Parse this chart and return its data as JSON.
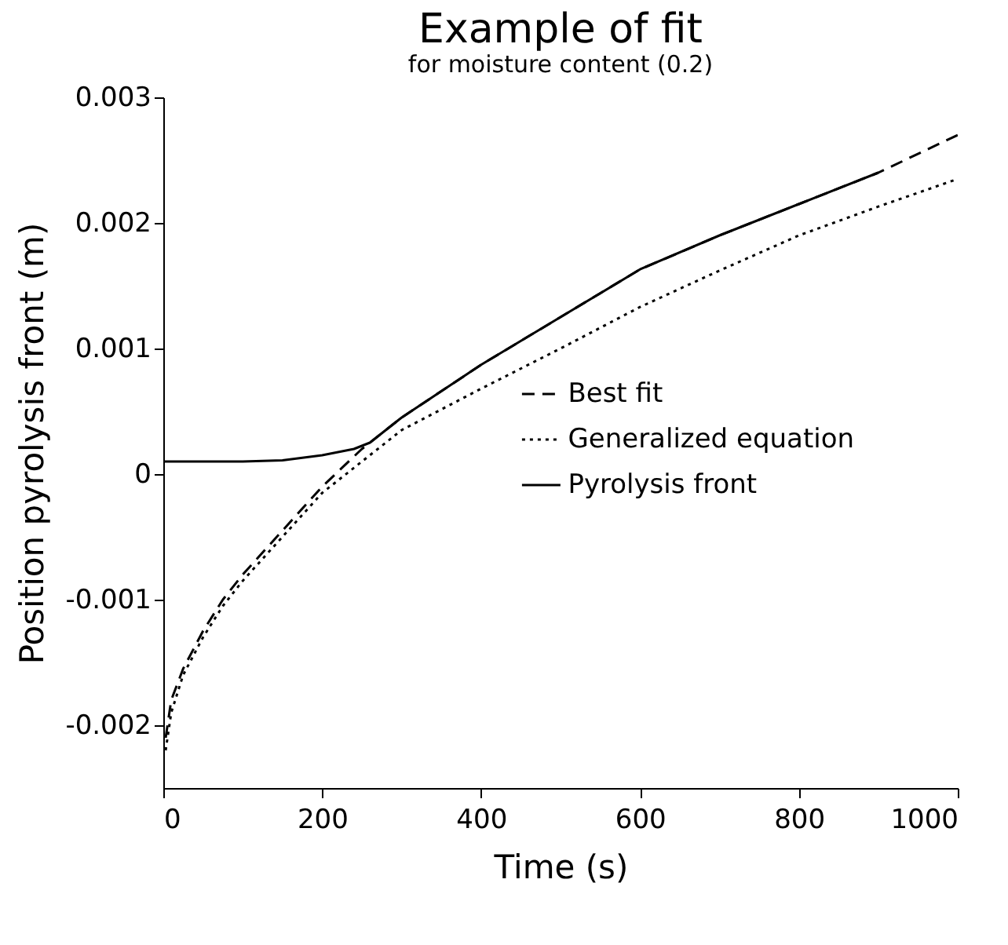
{
  "chart_data": {
    "type": "line",
    "title": "Example of fit",
    "subtitle": "for moisture content (0.2)",
    "xlabel": "Time (s)",
    "ylabel": "Position pyrolysis front (m)",
    "xlim": [
      0,
      1000
    ],
    "xticks": [
      0,
      200,
      400,
      600,
      800,
      1000
    ],
    "ylim": [
      -0.0025,
      0.003
    ],
    "yticks": [
      -0.002,
      -0.001,
      0,
      0.001,
      0.002,
      0.003
    ],
    "grid": false,
    "legend": "right",
    "marker": "none",
    "series": [
      {
        "name": "Best fit",
        "color": "#000000",
        "line_style": "dashed",
        "x": [
          3,
          10,
          25,
          50,
          75,
          100,
          150,
          200,
          250,
          300,
          400,
          500,
          600,
          700,
          800,
          900,
          1000
        ],
        "values": [
          -0.0021,
          -0.0018,
          -0.00155,
          -0.00125,
          -0.001,
          -0.0008,
          -0.00045,
          -0.0001,
          0.0002,
          0.00045,
          0.00087,
          0.00125,
          0.00163,
          0.0019,
          0.00215,
          0.0024,
          0.0027
        ]
      },
      {
        "name": "Generalized equation",
        "color": "#000000",
        "line_style": "dotted",
        "x": [
          3,
          10,
          25,
          50,
          75,
          100,
          150,
          200,
          250,
          300,
          400,
          500,
          600,
          700,
          800,
          900,
          1000
        ],
        "values": [
          -0.0022,
          -0.0019,
          -0.0016,
          -0.0013,
          -0.00105,
          -0.00085,
          -0.0005,
          -0.00015,
          0.0001,
          0.00035,
          0.00068,
          0.001,
          0.00133,
          0.00162,
          0.0019,
          0.00213,
          0.00235
        ]
      },
      {
        "name": "Pyrolysis front",
        "color": "#000000",
        "line_style": "solid",
        "x": [
          0,
          50,
          100,
          150,
          200,
          240,
          260,
          300,
          400,
          500,
          600,
          700,
          800,
          900
        ],
        "values": [
          0.0001,
          0.0001,
          0.0001,
          0.00011,
          0.00015,
          0.0002,
          0.00025,
          0.00045,
          0.00087,
          0.00125,
          0.00163,
          0.0019,
          0.00215,
          0.0024
        ]
      }
    ]
  }
}
